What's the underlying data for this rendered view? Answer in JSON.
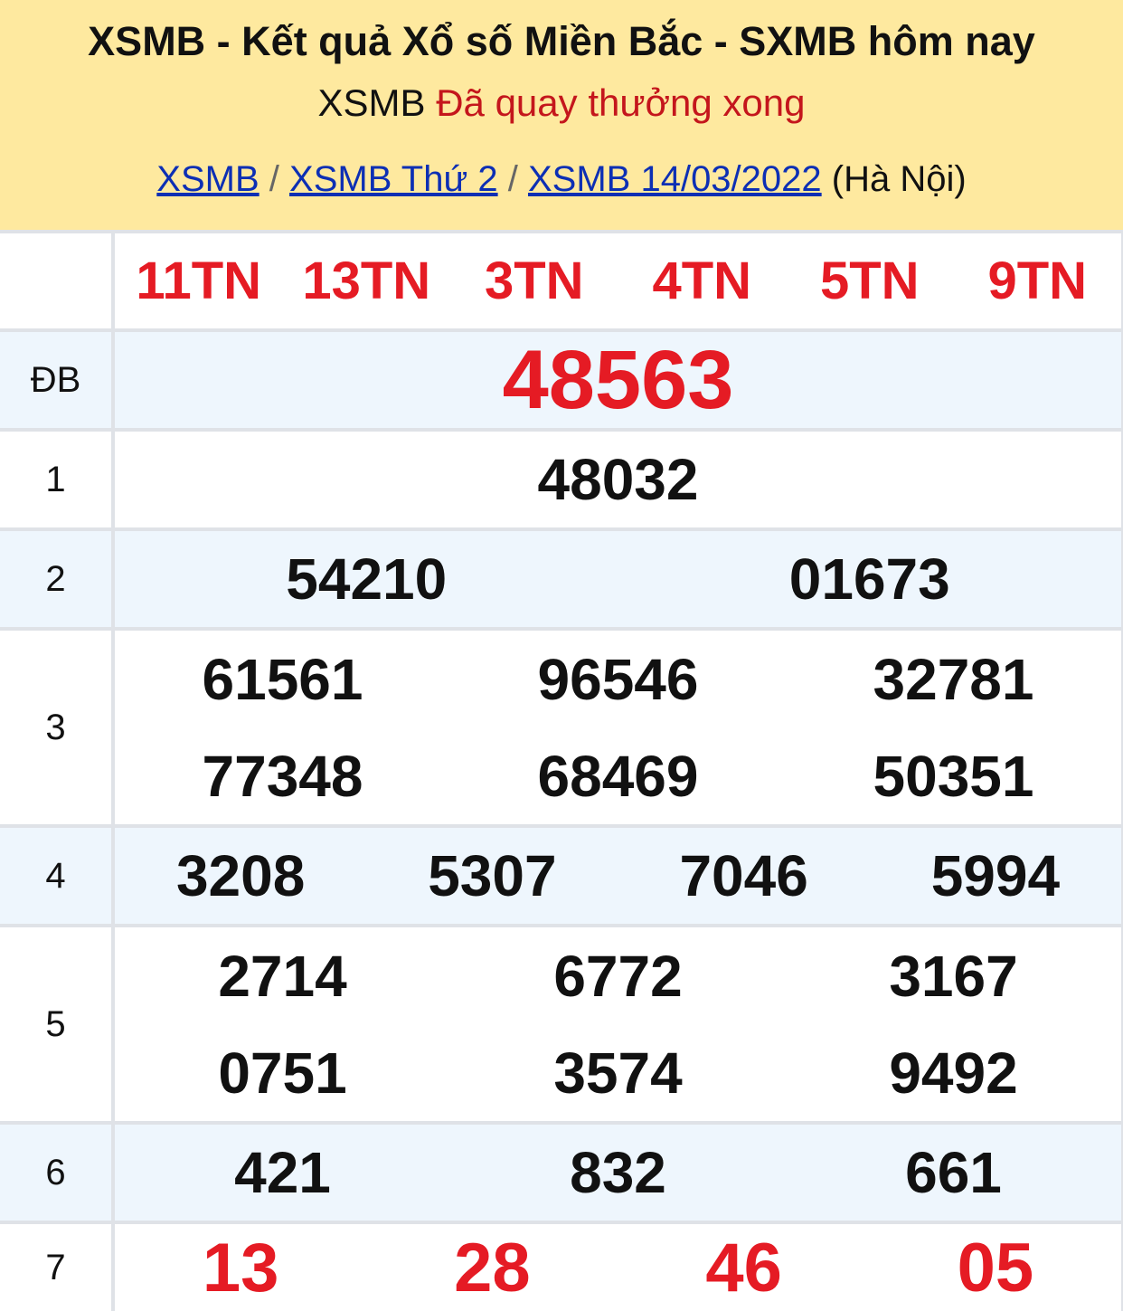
{
  "header": {
    "title": "XSMB - Kết quả Xổ số Miền Bắc - SXMB hôm nay",
    "status_prefix": "XSMB",
    "status": "Đã quay thưởng xong",
    "breadcrumb": [
      "XSMB",
      "XSMB Thứ 2",
      "XSMB 14/03/2022"
    ],
    "location": "(Hà Nội)"
  },
  "codes": [
    "11TN",
    "13TN",
    "3TN",
    "4TN",
    "5TN",
    "9TN"
  ],
  "prizes": [
    {
      "label": "ĐB",
      "numbers": [
        "48563"
      ]
    },
    {
      "label": "1",
      "numbers": [
        "48032"
      ]
    },
    {
      "label": "2",
      "numbers": [
        "54210",
        "01673"
      ]
    },
    {
      "label": "3",
      "numbers": [
        "61561",
        "96546",
        "32781",
        "77348",
        "68469",
        "50351"
      ]
    },
    {
      "label": "4",
      "numbers": [
        "3208",
        "5307",
        "7046",
        "5994"
      ]
    },
    {
      "label": "5",
      "numbers": [
        "2714",
        "6772",
        "3167",
        "0751",
        "3574",
        "9492"
      ]
    },
    {
      "label": "6",
      "numbers": [
        "421",
        "832",
        "661"
      ]
    },
    {
      "label": "7",
      "numbers": [
        "13",
        "28",
        "46",
        "05"
      ]
    }
  ],
  "colors": {
    "accent_red": "#e51b24",
    "header_bg": "#fee99f",
    "link": "#0d2fb4"
  }
}
